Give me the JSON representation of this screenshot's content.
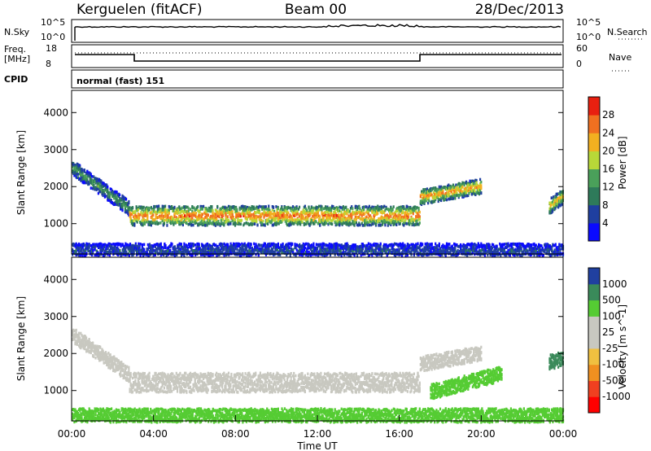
{
  "header": {
    "radar": "Kerguelen (fitACF)",
    "beam": "Beam 00",
    "date": "28/Dec/2013"
  },
  "panels": {
    "nsky_label": "N.Sky",
    "nsky_ticks": [
      "10^5",
      "10^0"
    ],
    "nsearch_label": "N.Search",
    "freq_label": "Freq.",
    "freq_unit": "[MHz]",
    "freq_ticks": [
      "18",
      "8"
    ],
    "nave_label": "Nave",
    "nave_ticks": [
      "60",
      "0"
    ],
    "cpid_label": "CPID",
    "cpid_value": "normal (fast) 151"
  },
  "colors": {
    "power": [
      "#0a0aff",
      "#1f3fa0",
      "#2e7a5a",
      "#4aa05a",
      "#b8d838",
      "#f2b020",
      "#f07020",
      "#e82010",
      "#ff0000"
    ],
    "velocity": [
      "#ff0000",
      "#f04020",
      "#f09020",
      "#f0c040",
      "#c8c8c0",
      "#c8c8c0",
      "#55cc33",
      "#3a8a5a",
      "#2040a0",
      "#0000ff"
    ]
  },
  "chart_data": [
    {
      "type": "heatmap",
      "variable": "power",
      "ylabel": "Slant Range [km]",
      "yticks": [
        1000,
        2000,
        3000,
        4000
      ],
      "ylim": [
        180,
        4600
      ],
      "xlim": [
        0,
        24
      ],
      "colorbar_label": "Power [dB]",
      "colorbar_ticks": [
        4,
        8,
        12,
        16,
        20,
        24,
        28
      ],
      "colorbar_range": [
        0,
        32
      ],
      "features": [
        {
          "from_hr": 0.0,
          "to_hr": 2.8,
          "range_start_km": 2550,
          "range_end_km": 1450,
          "level_db": 12
        },
        {
          "from_hr": 2.8,
          "to_hr": 17.0,
          "range_start_km": 1250,
          "range_end_km": 1250,
          "level_db": 24
        },
        {
          "from_hr": 17.0,
          "to_hr": 20.0,
          "range_start_km": 1750,
          "range_end_km": 2050,
          "level_db": 22
        },
        {
          "from_hr": 23.3,
          "to_hr": 24.0,
          "range_start_km": 1500,
          "range_end_km": 1800,
          "level_db": 20
        },
        {
          "from_hr": 0.0,
          "to_hr": 24.0,
          "range_start_km": 300,
          "range_end_km": 300,
          "level_db": 6
        }
      ]
    },
    {
      "type": "heatmap",
      "variable": "velocity",
      "ylabel": "Slant Range [km]",
      "yticks": [
        1000,
        2000,
        3000,
        4000
      ],
      "ylim": [
        180,
        4600
      ],
      "xlim": [
        0,
        24
      ],
      "colorbar_label": "Velocity [m s^-1]",
      "colorbar_ticks": [
        -1000,
        -500,
        -100,
        -25,
        25,
        100,
        500,
        1000
      ],
      "features": [
        {
          "from_hr": 0.0,
          "to_hr": 2.8,
          "range_start_km": 2550,
          "range_end_km": 1450,
          "velocity": 0
        },
        {
          "from_hr": 2.8,
          "to_hr": 17.0,
          "range_start_km": 1250,
          "range_end_km": 1250,
          "velocity": 0
        },
        {
          "from_hr": 17.0,
          "to_hr": 20.0,
          "range_start_km": 1750,
          "range_end_km": 2050,
          "velocity": 0
        },
        {
          "from_hr": 23.3,
          "to_hr": 24.0,
          "range_start_km": 1800,
          "range_end_km": 1900,
          "velocity": 800
        },
        {
          "from_hr": 17.5,
          "to_hr": 21.0,
          "range_start_km": 1000,
          "range_end_km": 1500,
          "velocity": 150
        },
        {
          "from_hr": 0.0,
          "to_hr": 24.0,
          "range_start_km": 350,
          "range_end_km": 350,
          "velocity": 150
        }
      ]
    }
  ],
  "xaxis": {
    "label": "Time UT",
    "ticks": [
      "00:00",
      "04:00",
      "08:00",
      "12:00",
      "16:00",
      "20:00",
      "00:00"
    ]
  }
}
